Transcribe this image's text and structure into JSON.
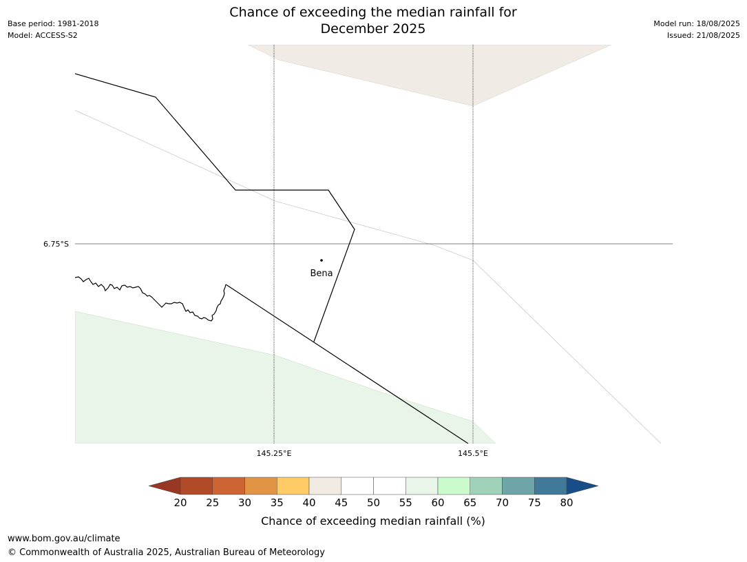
{
  "title": {
    "line1": "Chance of exceeding the median rainfall for",
    "line2": "December 2025"
  },
  "meta_left": {
    "base_period": "Base period: 1981-2018",
    "model": "Model: ACCESS-S2"
  },
  "meta_right": {
    "model_run": "Model run: 18/08/2025",
    "issued": "Issued: 21/08/2025"
  },
  "map": {
    "latitude_label": "6.75°S",
    "longitude_labels": [
      "145.25°E",
      "145.5°E"
    ],
    "place": {
      "name": "Bena"
    }
  },
  "colorbar": {
    "label": "Chance of exceeding median rainfall (%)",
    "ticks": [
      "20",
      "25",
      "30",
      "35",
      "40",
      "45",
      "50",
      "55",
      "60",
      "65",
      "70",
      "75",
      "80"
    ],
    "colors": [
      "#b14a26",
      "#cc6433",
      "#e19443",
      "#fecb66",
      "#f1ebe4",
      "#ffffff",
      "#ffffff",
      "#e9f5e8",
      "#cbfbcd",
      "#9fd2b9",
      "#6ea5a8",
      "#417a99"
    ],
    "under_color": "#983724",
    "over_color": "#174e88"
  },
  "shading": {
    "top_region_color": "#f0ebe5",
    "bottom_region_color": "#e9f5e8"
  },
  "footer": {
    "url": "www.bom.gov.au/climate",
    "copyright": "© Commonwealth of Australia 2025, Australian Bureau of Meteorology"
  }
}
